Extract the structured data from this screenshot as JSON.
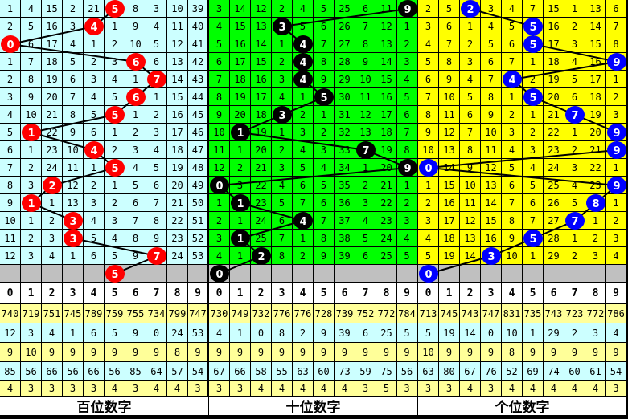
{
  "chart_data": {
    "type": "table",
    "digits": [
      "0",
      "1",
      "2",
      "3",
      "4",
      "5",
      "6",
      "7",
      "8",
      "9"
    ],
    "sections": [
      {
        "label": "百位数字",
        "bg": "#ccffff",
        "ball_color": "#ff0000",
        "draws": [
          5,
          4,
          0,
          6,
          7,
          6,
          5,
          1,
          4,
          5,
          2,
          1,
          3,
          3,
          7,
          5
        ],
        "rows": [
          [
            1,
            4,
            15,
            2,
            21,
            5,
            8,
            3,
            10,
            39
          ],
          [
            2,
            5,
            16,
            3,
            4,
            1,
            9,
            4,
            11,
            40
          ],
          [
            0,
            6,
            17,
            4,
            1,
            2,
            10,
            5,
            12,
            41
          ],
          [
            1,
            7,
            18,
            5,
            2,
            3,
            6,
            6,
            13,
            42
          ],
          [
            2,
            8,
            19,
            6,
            3,
            4,
            1,
            7,
            14,
            43
          ],
          [
            3,
            9,
            20,
            7,
            4,
            5,
            6,
            1,
            15,
            44
          ],
          [
            4,
            10,
            21,
            8,
            5,
            5,
            1,
            2,
            16,
            45
          ],
          [
            5,
            1,
            22,
            9,
            6,
            1,
            2,
            3,
            17,
            46
          ],
          [
            6,
            1,
            23,
            10,
            4,
            2,
            3,
            4,
            18,
            47
          ],
          [
            7,
            2,
            24,
            11,
            1,
            5,
            4,
            5,
            19,
            48
          ],
          [
            8,
            3,
            2,
            12,
            2,
            1,
            5,
            6,
            20,
            49
          ],
          [
            9,
            1,
            1,
            13,
            3,
            2,
            6,
            7,
            21,
            50
          ],
          [
            10,
            1,
            2,
            3,
            4,
            3,
            7,
            8,
            22,
            51
          ],
          [
            11,
            2,
            3,
            3,
            5,
            4,
            8,
            9,
            23,
            52
          ],
          [
            12,
            3,
            4,
            1,
            6,
            5,
            9,
            7,
            24,
            53
          ]
        ],
        "stats": [
          [
            740,
            719,
            751,
            745,
            789,
            759,
            755,
            734,
            799,
            747
          ],
          [
            12,
            3,
            4,
            1,
            6,
            5,
            9,
            0,
            24,
            53
          ],
          [
            9,
            10,
            9,
            9,
            9,
            9,
            9,
            9,
            8,
            9
          ],
          [
            85,
            56,
            66,
            56,
            66,
            56,
            85,
            64,
            57,
            54
          ],
          [
            4,
            3,
            3,
            3,
            3,
            4,
            3,
            4,
            4,
            3
          ]
        ]
      },
      {
        "label": "十位数字",
        "bg": "#00ff00",
        "ball_color": "#000000",
        "draws": [
          9,
          3,
          4,
          4,
          4,
          5,
          3,
          1,
          7,
          9,
          0,
          1,
          4,
          1,
          2,
          0
        ],
        "rows": [
          [
            3,
            14,
            12,
            2,
            4,
            5,
            25,
            6,
            11,
            9
          ],
          [
            4,
            15,
            13,
            3,
            5,
            6,
            26,
            7,
            12,
            1
          ],
          [
            5,
            16,
            14,
            1,
            4,
            7,
            27,
            8,
            13,
            2
          ],
          [
            6,
            17,
            15,
            2,
            4,
            8,
            28,
            9,
            14,
            3
          ],
          [
            7,
            18,
            16,
            3,
            4,
            9,
            29,
            10,
            15,
            4
          ],
          [
            8,
            19,
            17,
            4,
            1,
            5,
            30,
            11,
            16,
            5
          ],
          [
            9,
            20,
            18,
            3,
            2,
            1,
            31,
            12,
            17,
            6
          ],
          [
            10,
            1,
            19,
            1,
            3,
            2,
            32,
            13,
            18,
            7
          ],
          [
            11,
            1,
            20,
            2,
            4,
            3,
            33,
            7,
            19,
            8
          ],
          [
            12,
            2,
            21,
            3,
            5,
            4,
            34,
            1,
            20,
            9
          ],
          [
            0,
            3,
            22,
            4,
            6,
            5,
            35,
            2,
            21,
            1
          ],
          [
            1,
            1,
            23,
            5,
            7,
            6,
            36,
            3,
            22,
            2
          ],
          [
            2,
            1,
            24,
            6,
            4,
            7,
            37,
            4,
            23,
            3
          ],
          [
            3,
            1,
            25,
            7,
            1,
            8,
            38,
            5,
            24,
            4
          ],
          [
            4,
            1,
            2,
            8,
            2,
            9,
            39,
            6,
            25,
            5
          ]
        ],
        "stats": [
          [
            730,
            749,
            732,
            776,
            776,
            728,
            739,
            752,
            772,
            784
          ],
          [
            4,
            1,
            0,
            8,
            2,
            9,
            39,
            6,
            25,
            5
          ],
          [
            9,
            9,
            9,
            9,
            9,
            9,
            9,
            9,
            9,
            9
          ],
          [
            67,
            66,
            58,
            55,
            63,
            60,
            73,
            59,
            75,
            56
          ],
          [
            3,
            3,
            4,
            4,
            4,
            4,
            4,
            3,
            5,
            3
          ]
        ]
      },
      {
        "label": "个位数字",
        "bg": "#ffff00",
        "ball_color": "#0000ff",
        "draws": [
          2,
          5,
          5,
          9,
          4,
          5,
          7,
          9,
          9,
          0,
          9,
          8,
          7,
          5,
          3,
          0
        ],
        "rows": [
          [
            2,
            5,
            2,
            3,
            4,
            7,
            15,
            1,
            13,
            6
          ],
          [
            3,
            6,
            1,
            4,
            5,
            5,
            16,
            2,
            14,
            7
          ],
          [
            4,
            7,
            2,
            5,
            6,
            5,
            17,
            3,
            15,
            8
          ],
          [
            5,
            8,
            3,
            6,
            7,
            1,
            18,
            4,
            16,
            9
          ],
          [
            6,
            9,
            4,
            7,
            4,
            2,
            19,
            5,
            17,
            1
          ],
          [
            7,
            10,
            5,
            8,
            1,
            5,
            20,
            6,
            18,
            2
          ],
          [
            8,
            11,
            6,
            9,
            2,
            1,
            21,
            7,
            19,
            3
          ],
          [
            9,
            12,
            7,
            10,
            3,
            2,
            22,
            1,
            20,
            9
          ],
          [
            10,
            13,
            8,
            11,
            4,
            3,
            23,
            2,
            21,
            9
          ],
          [
            0,
            14,
            9,
            12,
            5,
            4,
            24,
            3,
            22,
            1
          ],
          [
            1,
            15,
            10,
            13,
            6,
            5,
            25,
            4,
            23,
            9
          ],
          [
            2,
            16,
            11,
            14,
            7,
            6,
            26,
            5,
            8,
            1
          ],
          [
            3,
            17,
            12,
            15,
            8,
            7,
            27,
            7,
            1,
            2
          ],
          [
            4,
            18,
            13,
            16,
            9,
            5,
            28,
            1,
            2,
            3
          ],
          [
            5,
            19,
            14,
            3,
            10,
            1,
            29,
            2,
            3,
            4
          ]
        ],
        "stats": [
          [
            713,
            745,
            743,
            747,
            831,
            735,
            743,
            723,
            772,
            786
          ],
          [
            5,
            19,
            14,
            0,
            10,
            1,
            29,
            2,
            3,
            4
          ],
          [
            10,
            9,
            9,
            9,
            8,
            9,
            9,
            9,
            9,
            9
          ],
          [
            63,
            80,
            67,
            76,
            52,
            69,
            74,
            60,
            61,
            54
          ],
          [
            3,
            3,
            4,
            3,
            4,
            4,
            4,
            4,
            4,
            3
          ]
        ]
      }
    ],
    "colors": {
      "pending_row": "#c0c0c0",
      "stat_yellow": "#ffff99",
      "stat_cyan": "#ccffff"
    }
  }
}
